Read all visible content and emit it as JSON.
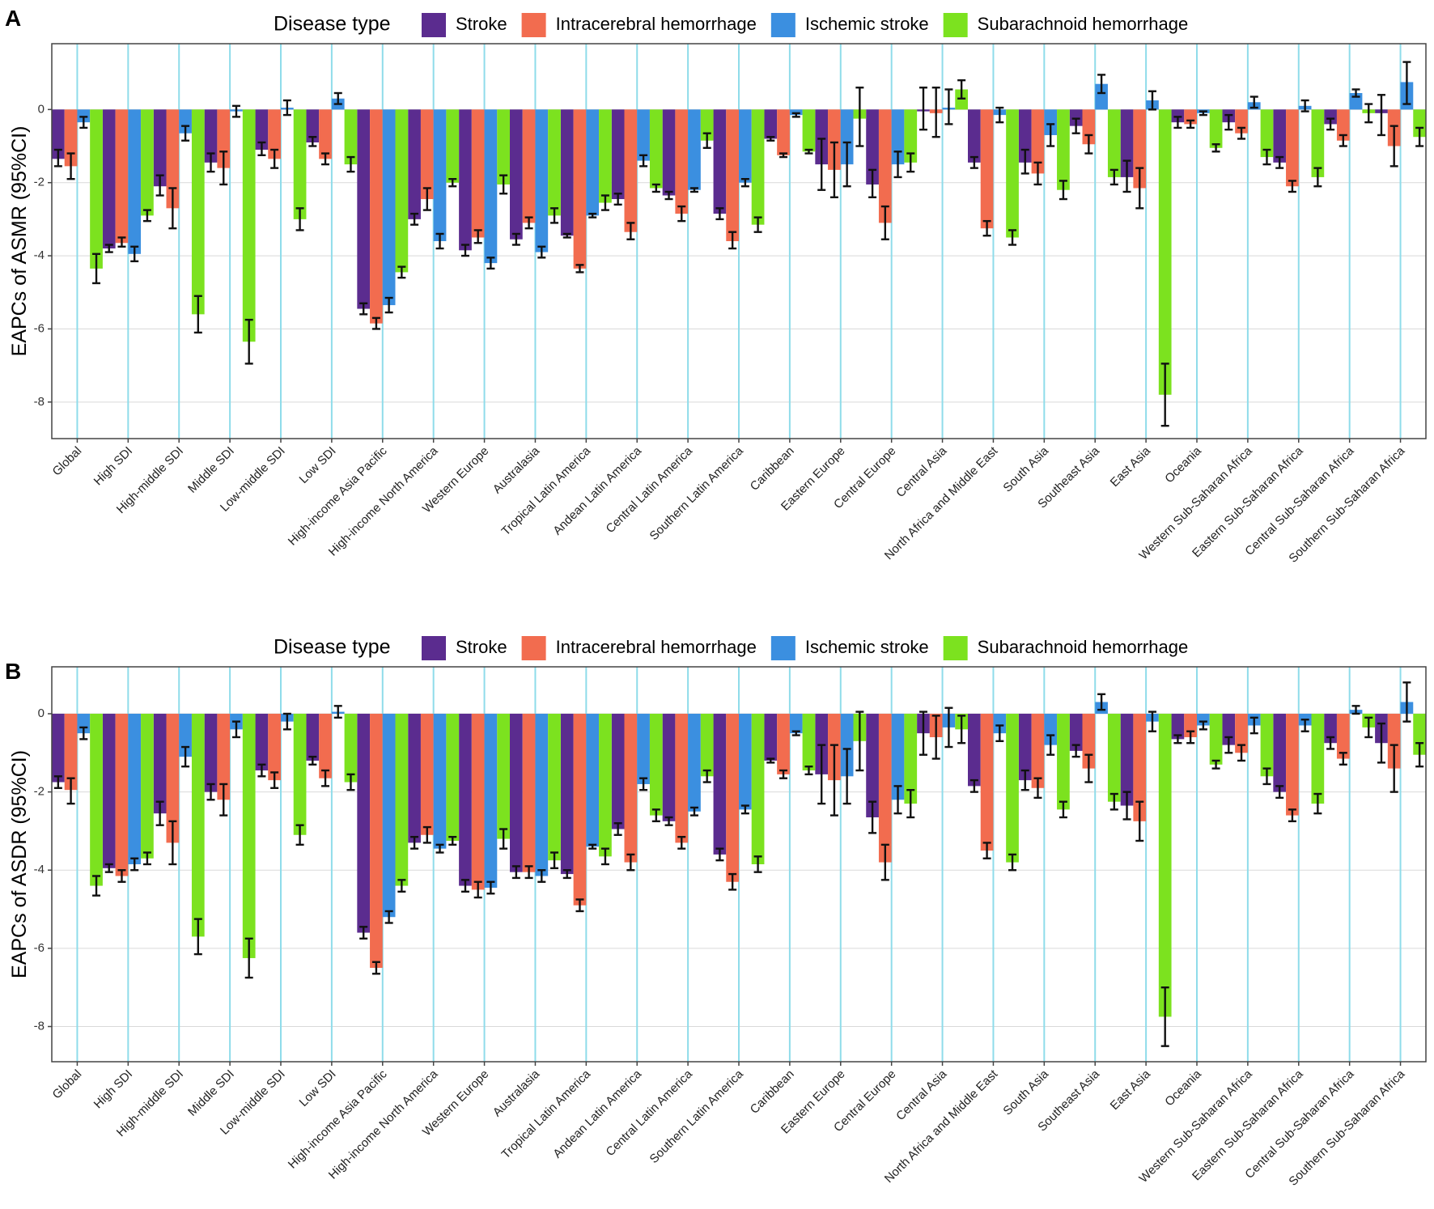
{
  "chart_data": [
    {
      "type": "bar",
      "panel_label": "A",
      "ylabel": "EAPCs of ASMR (95%CI)",
      "ylim": [
        -9,
        1.8
      ],
      "yticks": [
        0,
        -2,
        -4,
        -6,
        -8
      ],
      "grid": true,
      "legend": {
        "title": "Disease type",
        "position": "top"
      },
      "categories": [
        "Global",
        "High SDI",
        "High-middle SDI",
        "Middle SDI",
        "Low-middle SDI",
        "Low SDI",
        "High-income Asia Pacific",
        "High-income North America",
        "Western Europe",
        "Australasia",
        "Tropical Latin America",
        "Andean Latin America",
        "Central Latin America",
        "Southern Latin America",
        "Caribbean",
        "Eastern Europe",
        "Central Europe",
        "Central Asia",
        "North Africa and Middle East",
        "South Asia",
        "Southeast Asia",
        "East Asia",
        "Oceania",
        "Western Sub-Saharan Africa",
        "Eastern Sub-Saharan Africa",
        "Central Sub-Saharan Africa",
        "Southern Sub-Saharan Africa"
      ],
      "series": [
        {
          "name": "Stroke",
          "color": "#5b2c8f",
          "values": [
            -1.35,
            -3.8,
            -2.1,
            -1.45,
            -1.1,
            -0.9,
            -5.45,
            -3.0,
            -3.85,
            -3.55,
            -3.45,
            -2.45,
            -2.35,
            -2.85,
            -0.8,
            -1.5,
            -2.05,
            -0.05,
            -1.45,
            -1.45,
            -0.45,
            -1.85,
            -0.35,
            -0.35,
            -1.45,
            -0.4,
            -0.1
          ],
          "lower": [
            -1.55,
            -3.9,
            -2.35,
            -1.7,
            -1.25,
            -1.0,
            -5.6,
            -3.15,
            -4.0,
            -3.7,
            -3.5,
            -2.6,
            -2.45,
            -3.0,
            -0.85,
            -2.2,
            -2.4,
            -0.55,
            -1.6,
            -1.75,
            -0.65,
            -2.25,
            -0.5,
            -0.55,
            -1.6,
            -0.55,
            -0.7
          ],
          "upper": [
            -1.1,
            -3.7,
            -1.8,
            -1.2,
            -0.9,
            -0.75,
            -5.3,
            -2.85,
            -3.7,
            -3.4,
            -3.4,
            -2.3,
            -2.25,
            -2.7,
            -0.75,
            -0.8,
            -1.65,
            0.6,
            -1.3,
            -1.1,
            -0.25,
            -1.4,
            -0.2,
            -0.15,
            -1.3,
            -0.25,
            0.4
          ]
        },
        {
          "name": "Intracerebral hemorrhage",
          "color": "#f26c4f",
          "values": [
            -1.55,
            -3.65,
            -2.7,
            -1.6,
            -1.35,
            -1.35,
            -5.85,
            -2.45,
            -3.5,
            -3.1,
            -4.35,
            -3.35,
            -2.85,
            -3.6,
            -1.25,
            -1.65,
            -3.1,
            -0.1,
            -3.25,
            -1.75,
            -0.95,
            -2.15,
            -0.4,
            -0.65,
            -2.1,
            -0.85,
            -1.0
          ],
          "lower": [
            -1.9,
            -3.75,
            -3.25,
            -2.05,
            -1.6,
            -1.5,
            -6.0,
            -2.75,
            -3.65,
            -3.25,
            -4.45,
            -3.55,
            -3.05,
            -3.8,
            -1.3,
            -2.4,
            -3.55,
            -0.75,
            -3.45,
            -2.05,
            -1.2,
            -2.7,
            -0.5,
            -0.8,
            -2.25,
            -1.0,
            -1.55
          ],
          "upper": [
            -1.2,
            -3.5,
            -2.15,
            -1.15,
            -1.1,
            -1.2,
            -5.7,
            -2.15,
            -3.3,
            -2.95,
            -4.25,
            -3.1,
            -2.65,
            -3.35,
            -1.2,
            -0.9,
            -2.65,
            0.6,
            -3.05,
            -1.45,
            -0.7,
            -1.6,
            -0.3,
            -0.5,
            -1.95,
            -0.7,
            -0.45
          ]
        },
        {
          "name": "Ischemic stroke",
          "color": "#3b8fe0",
          "values": [
            -0.35,
            -3.95,
            -0.65,
            -0.05,
            0.05,
            0.3,
            -5.35,
            -3.6,
            -4.2,
            -3.9,
            -2.9,
            -1.4,
            -2.2,
            -2.0,
            -0.15,
            -1.5,
            -1.5,
            0.05,
            -0.15,
            -0.7,
            0.7,
            0.25,
            -0.1,
            0.2,
            0.1,
            0.45,
            0.75
          ],
          "lower": [
            -0.5,
            -4.15,
            -0.85,
            -0.2,
            -0.15,
            0.15,
            -5.55,
            -3.8,
            -4.35,
            -4.05,
            -2.95,
            -1.55,
            -2.25,
            -2.1,
            -0.2,
            -2.1,
            -1.85,
            -0.4,
            -0.35,
            -1.0,
            0.45,
            0.0,
            -0.15,
            0.05,
            -0.05,
            0.35,
            0.15
          ],
          "upper": [
            -0.2,
            -3.75,
            -0.45,
            0.1,
            0.25,
            0.45,
            -5.15,
            -3.4,
            -4.05,
            -3.75,
            -2.85,
            -1.25,
            -2.15,
            -1.9,
            -0.1,
            -0.9,
            -1.15,
            0.55,
            0.05,
            -0.4,
            0.95,
            0.5,
            -0.05,
            0.35,
            0.25,
            0.55,
            1.3
          ]
        },
        {
          "name": "Subarachnoid hemorrhage",
          "color": "#7ce21f",
          "values": [
            -4.35,
            -2.9,
            -5.6,
            -6.35,
            -3.0,
            -1.5,
            -4.45,
            -2.0,
            -2.05,
            -2.9,
            -2.55,
            -2.15,
            -0.85,
            -3.15,
            -1.15,
            -0.25,
            -1.45,
            0.55,
            -3.5,
            -2.2,
            -1.85,
            -7.8,
            -1.05,
            -1.3,
            -1.85,
            -0.1,
            -0.75
          ],
          "lower": [
            -4.75,
            -3.05,
            -6.1,
            -6.95,
            -3.3,
            -1.7,
            -4.6,
            -2.1,
            -2.3,
            -3.1,
            -2.75,
            -2.25,
            -1.05,
            -3.35,
            -1.2,
            -1.0,
            -1.7,
            0.3,
            -3.7,
            -2.45,
            -2.05,
            -8.65,
            -1.15,
            -1.5,
            -2.1,
            -0.35,
            -1.0
          ],
          "upper": [
            -3.95,
            -2.75,
            -5.1,
            -5.75,
            -2.7,
            -1.3,
            -4.3,
            -1.9,
            -1.8,
            -2.7,
            -2.35,
            -2.05,
            -0.65,
            -2.95,
            -1.1,
            0.6,
            -1.2,
            0.8,
            -3.3,
            -1.95,
            -1.65,
            -6.95,
            -0.95,
            -1.1,
            -1.6,
            0.15,
            -0.5
          ]
        }
      ]
    },
    {
      "type": "bar",
      "panel_label": "B",
      "ylabel": "EAPCs of ASDR (95%CI)",
      "ylim": [
        -8.9,
        1.2
      ],
      "yticks": [
        0,
        -2,
        -4,
        -6,
        -8
      ],
      "grid": true,
      "legend": {
        "title": "Disease type",
        "position": "top"
      },
      "categories": [
        "Global",
        "High SDI",
        "High-middle SDI",
        "Middle SDI",
        "Low-middle SDI",
        "Low SDI",
        "High-income Asia Pacific",
        "High-income North America",
        "Western Europe",
        "Australasia",
        "Tropical Latin America",
        "Andean Latin America",
        "Central Latin America",
        "Southern Latin America",
        "Caribbean",
        "Eastern Europe",
        "Central Europe",
        "Central Asia",
        "North Africa and Middle East",
        "South Asia",
        "Southeast Asia",
        "East Asia",
        "Oceania",
        "Western Sub-Saharan Africa",
        "Eastern Sub-Saharan Africa",
        "Central Sub-Saharan Africa",
        "Southern Sub-Saharan Africa"
      ],
      "series": [
        {
          "name": "Stroke",
          "color": "#5b2c8f",
          "values": [
            -1.75,
            -3.95,
            -2.55,
            -2.0,
            -1.45,
            -1.2,
            -5.6,
            -3.3,
            -4.4,
            -4.05,
            -4.1,
            -2.95,
            -2.75,
            -3.6,
            -1.2,
            -1.55,
            -2.65,
            -0.5,
            -1.85,
            -1.7,
            -0.95,
            -2.35,
            -0.65,
            -0.8,
            -2.0,
            -0.75,
            -0.75
          ],
          "lower": [
            -1.9,
            -4.05,
            -2.85,
            -2.2,
            -1.6,
            -1.3,
            -5.75,
            -3.45,
            -4.55,
            -4.2,
            -4.2,
            -3.1,
            -2.85,
            -3.75,
            -1.25,
            -2.3,
            -3.05,
            -1.05,
            -2.0,
            -1.95,
            -1.1,
            -2.7,
            -0.75,
            -1.0,
            -2.15,
            -0.9,
            -1.25
          ],
          "upper": [
            -1.6,
            -3.85,
            -2.25,
            -1.8,
            -1.3,
            -1.1,
            -5.45,
            -3.15,
            -4.25,
            -3.9,
            -4.0,
            -2.8,
            -2.65,
            -3.45,
            -1.15,
            -0.8,
            -2.25,
            0.05,
            -1.7,
            -1.45,
            -0.8,
            -2.0,
            -0.55,
            -0.6,
            -1.85,
            -0.6,
            -0.25
          ]
        },
        {
          "name": "Intracerebral hemorrhage",
          "color": "#f26c4f",
          "values": [
            -1.95,
            -4.15,
            -3.3,
            -2.2,
            -1.7,
            -1.65,
            -6.5,
            -3.1,
            -4.5,
            -4.05,
            -4.9,
            -3.8,
            -3.3,
            -4.3,
            -1.55,
            -1.7,
            -3.8,
            -0.6,
            -3.5,
            -1.9,
            -1.4,
            -2.75,
            -0.6,
            -1.0,
            -2.6,
            -1.15,
            -1.4
          ],
          "lower": [
            -2.3,
            -4.3,
            -3.85,
            -2.6,
            -1.9,
            -1.85,
            -6.65,
            -3.3,
            -4.7,
            -4.2,
            -5.05,
            -4.0,
            -3.45,
            -4.5,
            -1.65,
            -2.6,
            -4.25,
            -1.15,
            -3.7,
            -2.15,
            -1.75,
            -3.25,
            -0.75,
            -1.2,
            -2.75,
            -1.3,
            -2.0
          ],
          "upper": [
            -1.65,
            -4.0,
            -2.75,
            -1.8,
            -1.5,
            -1.45,
            -6.35,
            -2.9,
            -4.3,
            -3.9,
            -4.75,
            -3.6,
            -3.15,
            -4.1,
            -1.45,
            -0.8,
            -3.35,
            -0.05,
            -3.3,
            -1.65,
            -1.05,
            -2.25,
            -0.45,
            -0.8,
            -2.45,
            -1.0,
            -0.8
          ]
        },
        {
          "name": "Ischemic stroke",
          "color": "#3b8fe0",
          "values": [
            -0.5,
            -3.85,
            -1.1,
            -0.4,
            -0.2,
            0.05,
            -5.2,
            -3.45,
            -4.45,
            -4.15,
            -3.4,
            -1.8,
            -2.5,
            -2.45,
            -0.5,
            -1.6,
            -2.2,
            -0.35,
            -0.5,
            -0.8,
            0.3,
            -0.2,
            -0.3,
            -0.3,
            -0.3,
            0.1,
            0.3
          ],
          "lower": [
            -0.65,
            -4.0,
            -1.35,
            -0.6,
            -0.4,
            -0.1,
            -5.35,
            -3.55,
            -4.6,
            -4.3,
            -3.45,
            -1.95,
            -2.6,
            -2.55,
            -0.55,
            -2.3,
            -2.55,
            -0.85,
            -0.7,
            -1.05,
            0.1,
            -0.45,
            -0.4,
            -0.5,
            -0.45,
            0.0,
            -0.2
          ],
          "upper": [
            -0.35,
            -3.7,
            -0.85,
            -0.2,
            0.0,
            0.2,
            -5.05,
            -3.35,
            -4.3,
            -4.0,
            -3.35,
            -1.65,
            -2.4,
            -2.35,
            -0.45,
            -0.9,
            -1.85,
            0.15,
            -0.3,
            -0.55,
            0.5,
            0.05,
            -0.2,
            -0.1,
            -0.15,
            0.2,
            0.8
          ]
        },
        {
          "name": "Subarachnoid hemorrhage",
          "color": "#7ce21f",
          "values": [
            -4.4,
            -3.7,
            -5.7,
            -6.25,
            -3.1,
            -1.75,
            -4.4,
            -3.25,
            -3.2,
            -3.75,
            -3.65,
            -2.6,
            -1.6,
            -3.85,
            -1.45,
            -0.7,
            -2.3,
            -0.4,
            -3.8,
            -2.45,
            -2.25,
            -7.75,
            -1.3,
            -1.6,
            -2.3,
            -0.35,
            -1.05
          ],
          "lower": [
            -4.65,
            -3.85,
            -6.15,
            -6.75,
            -3.35,
            -1.95,
            -4.55,
            -3.35,
            -3.45,
            -3.95,
            -3.85,
            -2.75,
            -1.75,
            -4.05,
            -1.55,
            -1.45,
            -2.65,
            -0.75,
            -4.0,
            -2.65,
            -2.45,
            -8.5,
            -1.4,
            -1.8,
            -2.55,
            -0.6,
            -1.35
          ],
          "upper": [
            -4.15,
            -3.55,
            -5.25,
            -5.75,
            -2.85,
            -1.55,
            -4.25,
            -3.15,
            -2.95,
            -3.55,
            -3.45,
            -2.45,
            -1.45,
            -3.65,
            -1.35,
            0.05,
            -1.95,
            -0.05,
            -3.6,
            -2.25,
            -2.05,
            -7.0,
            -1.2,
            -1.4,
            -2.05,
            -0.1,
            -0.75
          ]
        }
      ]
    }
  ]
}
